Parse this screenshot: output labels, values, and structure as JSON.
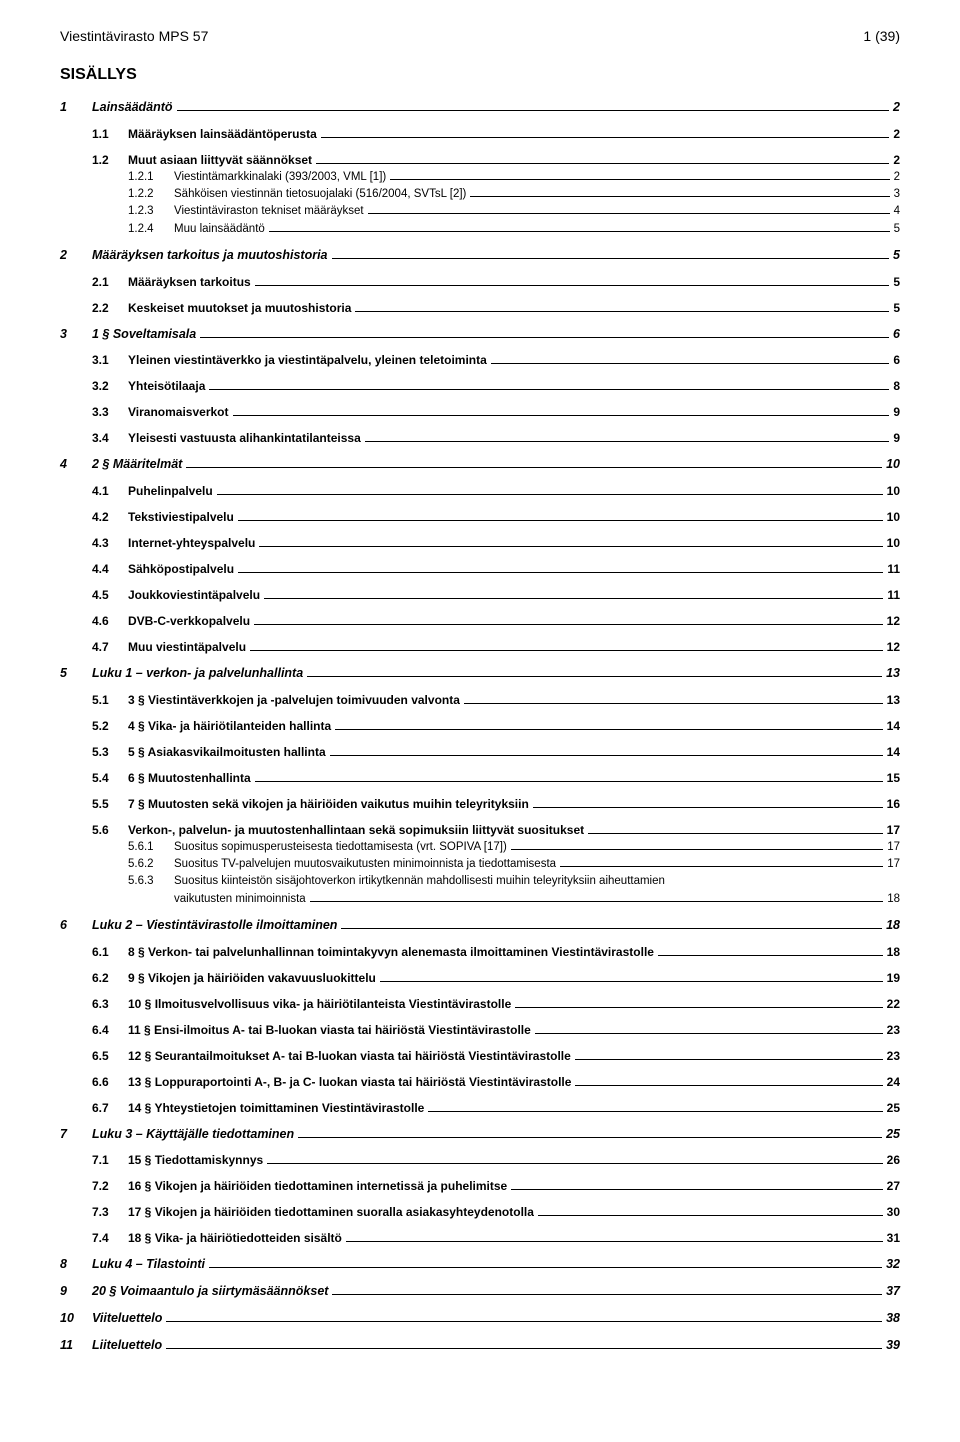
{
  "header": {
    "left": "Viestintävirasto MPS 57",
    "right": "1 (39)"
  },
  "sisallys_title": "SISÄLLYS",
  "toc": [
    {
      "level": 1,
      "num": "1",
      "label": "Lainsäädäntö",
      "page": "2",
      "gap": false
    },
    {
      "level": 2,
      "num": "1.1",
      "label": "Määräyksen lainsäädäntöperusta",
      "page": "2",
      "gap": true
    },
    {
      "level": 2,
      "num": "1.2",
      "label": "Muut asiaan liittyvät säännökset",
      "page": "2",
      "gap": true
    },
    {
      "level": 3,
      "num": "1.2.1",
      "label": "Viestintämarkkinalaki (393/2003, VML [1])",
      "page": "2",
      "gap": false
    },
    {
      "level": 3,
      "num": "1.2.2",
      "label": "Sähköisen viestinnän tietosuojalaki (516/2004, SVTsL [2])",
      "page": "3",
      "gap": false
    },
    {
      "level": 3,
      "num": "1.2.3",
      "label": "Viestintäviraston tekniset määräykset",
      "page": "4",
      "gap": false
    },
    {
      "level": 3,
      "num": "1.2.4",
      "label": "Muu lainsäädäntö",
      "page": "5",
      "gap": false
    },
    {
      "level": 1,
      "num": "2",
      "label": "Määräyksen tarkoitus ja muutoshistoria",
      "page": "5",
      "gap": true
    },
    {
      "level": 2,
      "num": "2.1",
      "label": "Määräyksen tarkoitus",
      "page": "5",
      "gap": true
    },
    {
      "level": 2,
      "num": "2.2",
      "label": "Keskeiset muutokset ja muutoshistoria",
      "page": "5",
      "gap": true
    },
    {
      "level": 1,
      "num": "3",
      "label": "1 § Soveltamisala",
      "page": "6",
      "gap": true
    },
    {
      "level": 2,
      "num": "3.1",
      "label": "Yleinen viestintäverkko ja viestintäpalvelu, yleinen teletoiminta",
      "page": "6",
      "gap": true
    },
    {
      "level": 2,
      "num": "3.2",
      "label": "Yhteisötilaaja",
      "page": "8",
      "gap": true
    },
    {
      "level": 2,
      "num": "3.3",
      "label": "Viranomaisverkot",
      "page": "9",
      "gap": true
    },
    {
      "level": 2,
      "num": "3.4",
      "label": "Yleisesti vastuusta alihankintatilanteissa",
      "page": "9",
      "gap": true
    },
    {
      "level": 1,
      "num": "4",
      "label": "2 § Määritelmät",
      "page": "10",
      "gap": true
    },
    {
      "level": 2,
      "num": "4.1",
      "label": "Puhelinpalvelu",
      "page": "10",
      "gap": true
    },
    {
      "level": 2,
      "num": "4.2",
      "label": "Tekstiviestipalvelu",
      "page": "10",
      "gap": true
    },
    {
      "level": 2,
      "num": "4.3",
      "label": "Internet-yhteyspalvelu",
      "page": "10",
      "gap": true
    },
    {
      "level": 2,
      "num": "4.4",
      "label": "Sähköpostipalvelu",
      "page": "11",
      "gap": true
    },
    {
      "level": 2,
      "num": "4.5",
      "label": "Joukkoviestintäpalvelu",
      "page": "11",
      "gap": true
    },
    {
      "level": 2,
      "num": "4.6",
      "label": "DVB-C-verkkopalvelu",
      "page": "12",
      "gap": true
    },
    {
      "level": 2,
      "num": "4.7",
      "label": "Muu viestintäpalvelu",
      "page": "12",
      "gap": true
    },
    {
      "level": 1,
      "num": "5",
      "label": "Luku 1 – verkon- ja palvelunhallinta",
      "page": "13",
      "gap": true
    },
    {
      "level": 2,
      "num": "5.1",
      "label": "3 § Viestintäverkkojen ja -palvelujen toimivuuden valvonta",
      "page": "13",
      "gap": true
    },
    {
      "level": 2,
      "num": "5.2",
      "label": "4 § Vika- ja häiriötilanteiden hallinta",
      "page": "14",
      "gap": true
    },
    {
      "level": 2,
      "num": "5.3",
      "label": "5 § Asiakasvikailmoitusten hallinta",
      "page": "14",
      "gap": true
    },
    {
      "level": 2,
      "num": "5.4",
      "label": "6 § Muutostenhallinta",
      "page": "15",
      "gap": true
    },
    {
      "level": 2,
      "num": "5.5",
      "label": "7 § Muutosten sekä vikojen ja häiriöiden vaikutus muihin teleyrityksiin",
      "page": "16",
      "gap": true
    },
    {
      "level": 2,
      "num": "5.6",
      "label": "Verkon-, palvelun- ja muutostenhallintaan sekä sopimuksiin liittyvät suositukset",
      "page": "17",
      "gap": true
    },
    {
      "level": 3,
      "num": "5.6.1",
      "label": "Suositus sopimusperusteisesta tiedottamisesta (vrt. SOPIVA [17])",
      "page": "17",
      "gap": false
    },
    {
      "level": 3,
      "num": "5.6.2",
      "label": "Suositus TV-palvelujen muutosvaikutusten minimoinnista ja tiedottamisesta",
      "page": "17",
      "gap": false
    },
    {
      "level": 3,
      "num": "5.6.3",
      "label": "Suositus kiinteistön sisäjohtoverkon irtikytkennän mahdollisesti muihin teleyrityksiin aiheuttamien",
      "page": "",
      "gap": false,
      "nodots": true
    },
    {
      "level": "3cont",
      "num": "",
      "label": "vaikutusten minimoinnista",
      "page": "18",
      "gap": false
    },
    {
      "level": 1,
      "num": "6",
      "label": "Luku 2 – Viestintävirastolle ilmoittaminen",
      "page": "18",
      "gap": true
    },
    {
      "level": 2,
      "num": "6.1",
      "label": "8 § Verkon- tai palvelunhallinnan toimintakyvyn alenemasta ilmoittaminen Viestintävirastolle",
      "page": "18",
      "gap": true
    },
    {
      "level": 2,
      "num": "6.2",
      "label": "9 § Vikojen ja häiriöiden vakavuusluokittelu",
      "page": "19",
      "gap": true
    },
    {
      "level": 2,
      "num": "6.3",
      "label": "10 § Ilmoitusvelvollisuus vika- ja häiriötilanteista Viestintävirastolle",
      "page": "22",
      "gap": true
    },
    {
      "level": 2,
      "num": "6.4",
      "label": "11 § Ensi-ilmoitus A- tai B-luokan viasta tai häiriöstä Viestintävirastolle",
      "page": "23",
      "gap": true
    },
    {
      "level": 2,
      "num": "6.5",
      "label": "12 § Seurantailmoitukset A- tai B-luokan viasta tai häiriöstä Viestintävirastolle",
      "page": "23",
      "gap": true
    },
    {
      "level": 2,
      "num": "6.6",
      "label": "13 § Loppuraportointi A-, B- ja C- luokan viasta tai häiriöstä Viestintävirastolle",
      "page": "24",
      "gap": true
    },
    {
      "level": 2,
      "num": "6.7",
      "label": "14 § Yhteystietojen toimittaminen Viestintävirastolle",
      "page": "25",
      "gap": true
    },
    {
      "level": 1,
      "num": "7",
      "label": "Luku 3 – Käyttäjälle tiedottaminen",
      "page": "25",
      "gap": true
    },
    {
      "level": 2,
      "num": "7.1",
      "label": "15 § Tiedottamiskynnys",
      "page": "26",
      "gap": true
    },
    {
      "level": 2,
      "num": "7.2",
      "label": "16 § Vikojen ja häiriöiden tiedottaminen internetissä ja puhelimitse",
      "page": "27",
      "gap": true
    },
    {
      "level": 2,
      "num": "7.3",
      "label": "17 § Vikojen ja häiriöiden tiedottaminen suoralla asiakasyhteydenotolla",
      "page": "30",
      "gap": true
    },
    {
      "level": 2,
      "num": "7.4",
      "label": "18 § Vika- ja häiriötiedotteiden sisältö",
      "page": "31",
      "gap": true
    },
    {
      "level": 1,
      "num": "8",
      "label": "Luku 4 – Tilastointi",
      "page": "32",
      "gap": true
    },
    {
      "level": 1,
      "num": "9",
      "label": "20 § Voimaantulo ja siirtymäsäännökset",
      "page": "37",
      "gap": true
    },
    {
      "level": 1,
      "num": "10",
      "label": "Viiteluettelo",
      "page": "38",
      "gap": true
    },
    {
      "level": 1,
      "num": "11",
      "label": "Liiteluettelo",
      "page": "39",
      "gap": true
    }
  ]
}
